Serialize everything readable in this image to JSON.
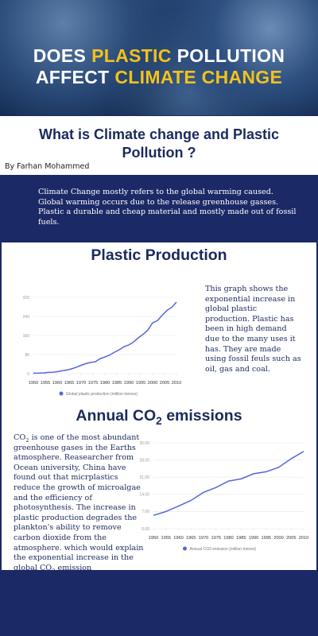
{
  "header": {
    "title_line1": [
      "DOES",
      "PLASTIC",
      "POLLUTION"
    ],
    "title_line2": [
      "AFFECT",
      "CLIMATE CHANGE"
    ]
  },
  "intro": {
    "title": "What is Climate change and Plastic Pollution ?",
    "author": "By Farhan Mohammed",
    "text": "Climate Change mostly refers to the global warming caused. Global warming occurs due to the release greenhouse gasses. Plastic a durable and cheap material and mostly made out of fossil fuels."
  },
  "plastic": {
    "title": "Plastic Production",
    "text": "This graph shows the exponential increase in global plastic production. Plastic has been in high demand due to the many uses it has. They are made using fossil feuls such as oil, gas and coal.",
    "chart": {
      "type": "line",
      "x": [
        1950,
        1952,
        1954,
        1956,
        1958,
        1960,
        1962,
        1964,
        1966,
        1968,
        1970,
        1972,
        1974,
        1976,
        1978,
        1980,
        1982,
        1984,
        1986,
        1988,
        1990,
        1992,
        1994,
        1996,
        1998,
        2000,
        2002,
        2004,
        2006,
        2008,
        2010
      ],
      "series": [
        {
          "name": "Global plastic production (million tonnes)",
          "color": "#5468d4",
          "values": [
            2,
            2,
            3,
            5,
            6,
            8,
            12,
            15,
            20,
            27,
            35,
            42,
            47,
            50,
            63,
            70,
            78,
            90,
            100,
            113,
            120,
            133,
            150,
            165,
            183,
            213,
            222,
            245,
            265,
            278,
            300
          ]
        }
      ],
      "xlim": [
        1950,
        2010
      ],
      "xticks": [
        1950,
        1955,
        1960,
        1965,
        1970,
        1975,
        1980,
        1985,
        1990,
        1995,
        2000,
        2005,
        2010
      ],
      "ylim": [
        0,
        320
      ],
      "yticks": [
        0,
        80,
        160,
        240,
        320
      ],
      "grid": true
    }
  },
  "co2": {
    "title": [
      "Annual CO",
      "2",
      "emissions"
    ],
    "text": [
      "CO",
      "2",
      "is one of the most abundant greenhouse gases in the Earths atmosphere. Reasearcher from Ocean university, China have found out that micrplastics reduce the growth of microalgae and the efficiency of photosynthesis. The increase in plastic production degrades the  plankton's ability to remove carbon dioxide from the atmosphere. which would explain the exponential increase in the global CO",
      "2",
      "emission"
    ],
    "chart": {
      "type": "line",
      "x": [
        1950,
        1955,
        1960,
        1965,
        1970,
        1975,
        1980,
        1985,
        1990,
        1995,
        2000,
        2005,
        2010
      ],
      "series": [
        {
          "name": "Annual CO2 emission (million tonnes)",
          "color": "#5468d4",
          "values": [
            5.4,
            7,
            9.2,
            11.5,
            14.8,
            16.8,
            19.4,
            20.3,
            22.4,
            23.2,
            25,
            28.5,
            31.5
          ]
        }
      ],
      "xlim": [
        1950,
        2010
      ],
      "xticks": [
        1950,
        1955,
        1960,
        1965,
        1970,
        1975,
        1980,
        1985,
        1990,
        1995,
        2000,
        2005,
        2010
      ],
      "ylim": [
        0,
        35
      ],
      "yticks": [
        {
          "value": 0,
          "label": "0.00"
        },
        {
          "value": 7,
          "label": "7.00"
        },
        {
          "value": 14,
          "label": "14.00"
        },
        {
          "value": 21,
          "label": "21.00"
        },
        {
          "value": 28,
          "label": "28.00"
        },
        {
          "value": 35,
          "label": "35.00"
        }
      ],
      "grid": true
    }
  }
}
